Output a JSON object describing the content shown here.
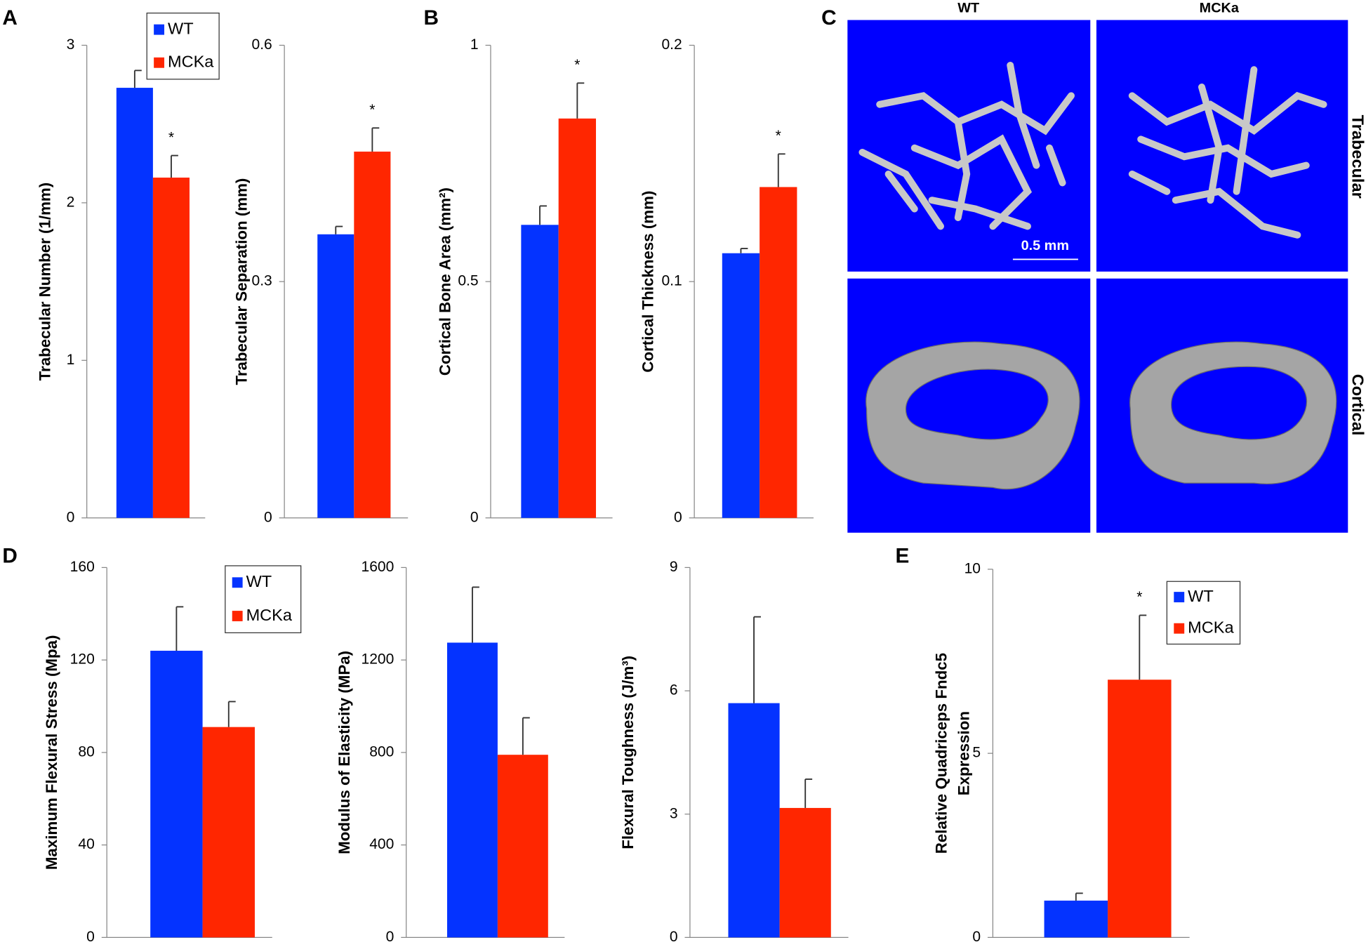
{
  "panel_labels": [
    "A",
    "B",
    "C",
    "D",
    "E"
  ],
  "image_panel": {
    "columns": [
      "WT",
      "MCKa"
    ],
    "rows": [
      "Trabecular",
      "Cortical"
    ],
    "scale_bar": "0.5 mm"
  },
  "chart_data": [
    {
      "type": "bar",
      "ylabel": [
        "Trabecular Number (1/mm)"
      ],
      "ylim": [
        0,
        3
      ],
      "yticks": [
        0,
        1,
        2,
        3
      ],
      "legend": "upper right",
      "series": [
        {
          "name": "WT",
          "color": "#0433ff",
          "values": [
            2.73
          ],
          "errors": [
            0.11
          ]
        },
        {
          "name": "MCKa",
          "color": "#ff2600",
          "values": [
            2.16
          ],
          "errors": [
            0.14
          ],
          "annotations": [
            "*"
          ]
        }
      ]
    },
    {
      "type": "bar",
      "ylabel": [
        "Trabecular Separation (mm)"
      ],
      "ylim": [
        0,
        0.6
      ],
      "yticks": [
        0,
        0.3,
        0.6
      ],
      "series": [
        {
          "color": "#0433ff",
          "values": [
            0.36
          ],
          "errors": [
            0.01
          ]
        },
        {
          "color": "#ff2600",
          "values": [
            0.465
          ],
          "errors": [
            0.03
          ],
          "annotations": [
            "*"
          ]
        }
      ]
    },
    {
      "type": "bar",
      "ylabel": [
        "Cortical Bone Area (mm²)"
      ],
      "ylim": [
        0,
        1
      ],
      "yticks": [
        0,
        0.5,
        1
      ],
      "series": [
        {
          "color": "#0433ff",
          "values": [
            0.62
          ],
          "errors": [
            0.04
          ]
        },
        {
          "color": "#ff2600",
          "values": [
            0.845
          ],
          "errors": [
            0.075
          ],
          "annotations": [
            "*"
          ]
        }
      ]
    },
    {
      "type": "bar",
      "ylabel": [
        "Cortical Thickness (mm)"
      ],
      "ylim": [
        0,
        0.2
      ],
      "yticks": [
        0,
        0.1,
        0.2
      ],
      "series": [
        {
          "color": "#0433ff",
          "values": [
            0.112
          ],
          "errors": [
            0.002
          ]
        },
        {
          "color": "#ff2600",
          "values": [
            0.14
          ],
          "errors": [
            0.014
          ],
          "annotations": [
            "*"
          ]
        }
      ]
    },
    {
      "type": "bar",
      "ylabel": [
        "Maximum Flexural Stress (Mpa)"
      ],
      "ylim": [
        0,
        160
      ],
      "yticks": [
        0,
        40,
        80,
        120,
        160
      ],
      "legend": "upper right",
      "series": [
        {
          "name": "WT",
          "color": "#0433ff",
          "values": [
            124
          ],
          "errors": [
            19
          ]
        },
        {
          "name": "MCKa",
          "color": "#ff2600",
          "values": [
            91
          ],
          "errors": [
            11
          ]
        }
      ]
    },
    {
      "type": "bar",
      "ylabel": [
        "Modulus of Elasticity (MPa)"
      ],
      "ylim": [
        0,
        1600
      ],
      "yticks": [
        0,
        400,
        800,
        1200,
        1600
      ],
      "series": [
        {
          "color": "#0433ff",
          "values": [
            1275
          ],
          "errors": [
            240
          ]
        },
        {
          "color": "#ff2600",
          "values": [
            790
          ],
          "errors": [
            160
          ]
        }
      ]
    },
    {
      "type": "bar",
      "ylabel": [
        "Flexural Toughness (J/m³)"
      ],
      "ylim": [
        0,
        9
      ],
      "yticks": [
        0,
        3,
        6,
        9
      ],
      "series": [
        {
          "color": "#0433ff",
          "values": [
            5.7
          ],
          "errors": [
            2.1
          ]
        },
        {
          "color": "#ff2600",
          "values": [
            3.15
          ],
          "errors": [
            0.7
          ]
        }
      ]
    },
    {
      "type": "bar",
      "ylabel": [
        "Relative Quadriceps Fndc5",
        "Expression"
      ],
      "ylim": [
        0,
        10
      ],
      "yticks": [
        0,
        5,
        10
      ],
      "legend": "upper right",
      "series": [
        {
          "name": "WT",
          "color": "#0433ff",
          "values": [
            1.0
          ],
          "errors": [
            0.2
          ]
        },
        {
          "name": "MCKa",
          "color": "#ff2600",
          "values": [
            7.0
          ],
          "errors": [
            1.75
          ],
          "annotations": [
            "*"
          ]
        }
      ]
    }
  ]
}
